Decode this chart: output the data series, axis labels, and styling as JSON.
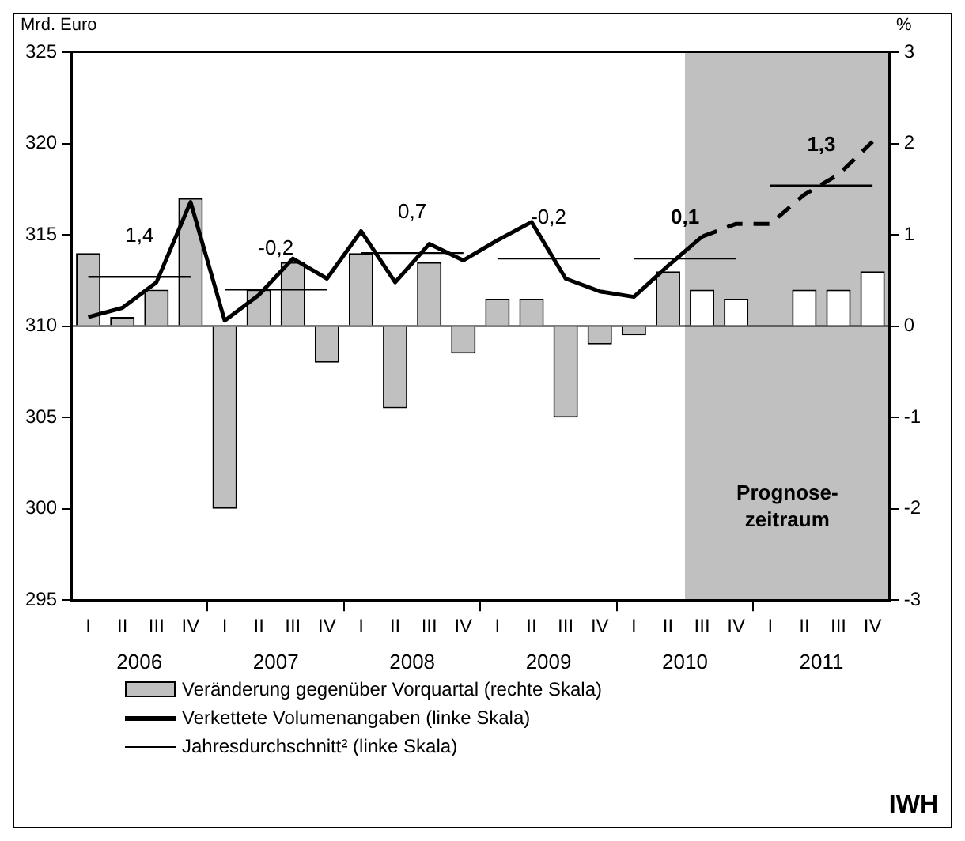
{
  "chart_data": {
    "type": "bar",
    "ylabel": "Mrd. Euro",
    "y2label": "%",
    "categories": [
      "I",
      "II",
      "III",
      "IV",
      "I",
      "II",
      "III",
      "IV",
      "I",
      "II",
      "III",
      "IV",
      "I",
      "II",
      "III",
      "IV",
      "I",
      "II",
      "III",
      "IV",
      "I",
      "II",
      "III",
      "IV"
    ],
    "series": [
      {
        "name": "Veränderung gegenüber Vorquartal (rechte Skala)",
        "axis": "y2",
        "color": "#c0c0c0",
        "colors": [
          "#c0c0c0",
          "#c0c0c0",
          "#c0c0c0",
          "#c0c0c0",
          "#c0c0c0",
          "#c0c0c0",
          "#c0c0c0",
          "#c0c0c0",
          "#c0c0c0",
          "#c0c0c0",
          "#c0c0c0",
          "#c0c0c0",
          "#c0c0c0",
          "#c0c0c0",
          "#c0c0c0",
          "#c0c0c0",
          "#c0c0c0",
          "#c0c0c0",
          "#ffffff",
          "#ffffff",
          "#ffffff",
          "#ffffff",
          "#ffffff",
          "#ffffff"
        ],
        "values": [
          0.8,
          0.1,
          0.4,
          1.4,
          -2.0,
          0.4,
          0.7,
          -0.4,
          0.8,
          -0.9,
          0.7,
          -0.3,
          0.3,
          0.3,
          -1.0,
          -0.2,
          -0.1,
          0.6,
          0.4,
          0.3,
          0,
          0.4,
          0.4,
          0.6
        ]
      },
      {
        "name": "Verkettete Volumenangaben (linke Skala)",
        "type": "line",
        "color": "#000000",
        "values": [
          310.5,
          311.0,
          312.4,
          316.8,
          310.3,
          311.7,
          313.7,
          312.6,
          315.2,
          312.4,
          314.5,
          313.6,
          314.7,
          315.7,
          312.6,
          311.9,
          311.6,
          313.3,
          314.9,
          null,
          null,
          null,
          null,
          null
        ]
      },
      {
        "type": "line",
        "line_style": "dashed",
        "color": "#000000",
        "values": [
          null,
          null,
          null,
          null,
          null,
          null,
          null,
          null,
          null,
          null,
          null,
          null,
          null,
          null,
          null,
          null,
          null,
          null,
          314.9,
          315.6,
          315.6,
          317.2,
          318.3,
          320.1
        ]
      },
      {
        "name": "Jahresdurchschnitt² (linke Skala)",
        "type": "step",
        "color": "#000000",
        "values": [
          312.7,
          312.7,
          312.7,
          312.7,
          312.0,
          312.0,
          312.0,
          312.0,
          314.0,
          314.0,
          314.0,
          314.0,
          313.7,
          313.7,
          313.7,
          313.7,
          313.7,
          313.7,
          313.7,
          313.7,
          317.7,
          317.7,
          317.7,
          317.7
        ]
      }
    ],
    "ylim": [
      295,
      325
    ],
    "yticks": [
      295,
      300,
      305,
      310,
      315,
      320,
      325
    ],
    "y2lim": [
      -3,
      3
    ],
    "y2ticks": [
      -3,
      -2,
      -1,
      0,
      1,
      2,
      3
    ],
    "ref_lines": [
      {
        "axis": "y2",
        "value": 0,
        "color": "#000000"
      }
    ],
    "annotations": [
      {
        "text": "1,4",
        "y": 312.7
      },
      {
        "text": "-0,2",
        "y": 312.0
      },
      {
        "text": "0,7",
        "y": 314.0
      },
      {
        "text": "-0,2",
        "y": 313.7
      },
      {
        "text": "0,1",
        "y": 313.7
      },
      {
        "text": "1,3",
        "y": 317.7
      },
      {
        "text": "Prognose-\nzeitraum"
      },
      "2006",
      "2007",
      "2008",
      "2009",
      "2010",
      "2011",
      "IWH"
    ],
    "grid": false,
    "legend": "bottom",
    "marker": "none"
  }
}
